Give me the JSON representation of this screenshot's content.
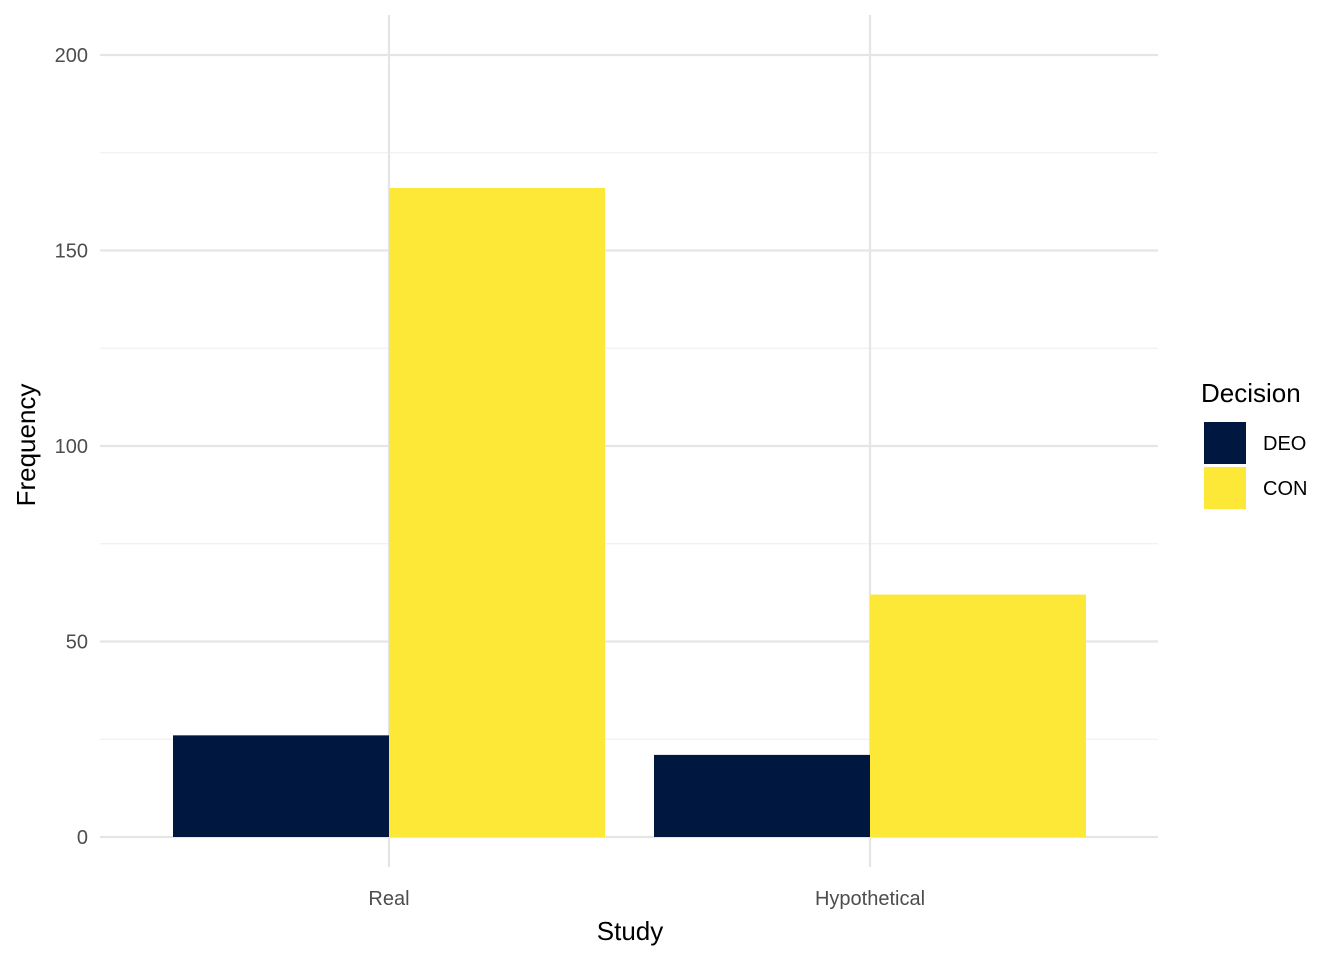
{
  "chart_data": {
    "type": "bar",
    "title": "",
    "xlabel": "Study",
    "ylabel": "Frequency",
    "categories": [
      "Real",
      "Hypothetical"
    ],
    "series": [
      {
        "name": "DEO",
        "values": [
          26,
          21
        ],
        "color": "#00183F"
      },
      {
        "name": "CON",
        "values": [
          166,
          62
        ],
        "color": "#FDE737"
      }
    ],
    "ylim": [
      0,
      200
    ],
    "yticks": [
      0,
      50,
      100,
      150,
      200
    ],
    "grid": true,
    "legend": {
      "title": "Decision",
      "position": "right"
    }
  }
}
